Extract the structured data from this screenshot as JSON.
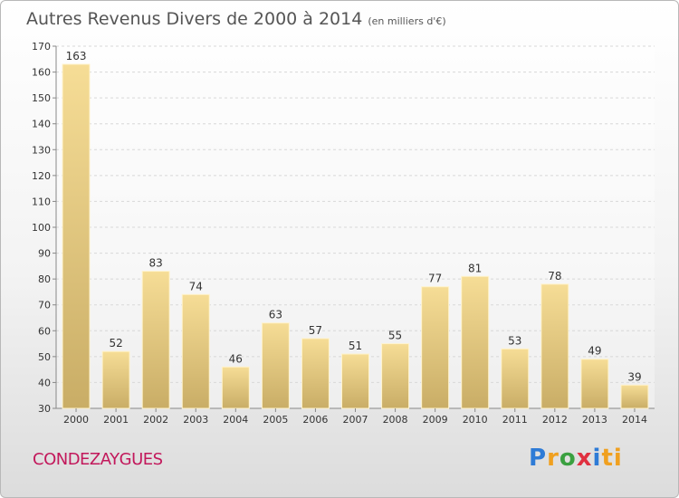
{
  "header": {
    "title": "Autres Revenus Divers de 2000 à 2014",
    "unit": "(en milliers d'€)"
  },
  "footer": {
    "city": "CONDEZAYGUES",
    "logo_letters": [
      "P",
      "r",
      "o",
      "x",
      "i",
      "ti"
    ]
  },
  "colors": {
    "bar_top": "#f6dd96",
    "bar_bottom": "#c9ad66",
    "city": "#c2185b"
  },
  "chart_data": {
    "type": "bar",
    "categories": [
      "2000",
      "2001",
      "2002",
      "2003",
      "2004",
      "2005",
      "2006",
      "2007",
      "2008",
      "2009",
      "2010",
      "2011",
      "2012",
      "2013",
      "2014"
    ],
    "values": [
      163,
      52,
      83,
      74,
      46,
      63,
      57,
      51,
      55,
      77,
      81,
      53,
      78,
      49,
      39
    ],
    "title": "Autres Revenus Divers de 2000 à 2014",
    "xlabel": "",
    "ylabel": "",
    "ylim": [
      30,
      170
    ],
    "yticks": [
      30,
      40,
      50,
      60,
      70,
      80,
      90,
      100,
      110,
      120,
      130,
      140,
      150,
      160,
      170
    ],
    "grid": true,
    "legend": "none"
  }
}
